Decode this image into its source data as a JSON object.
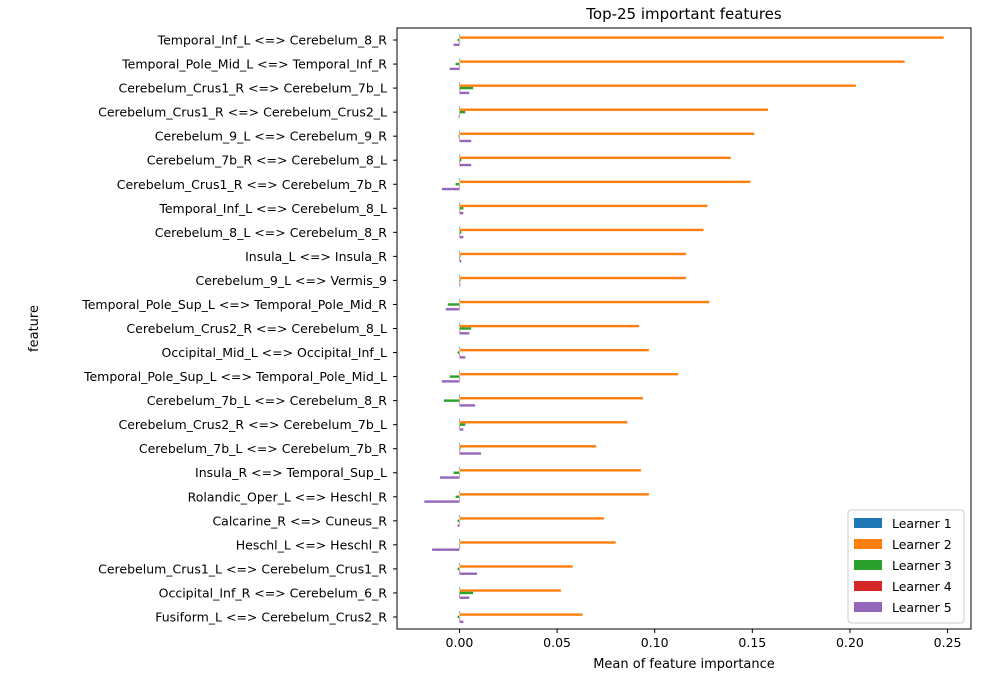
{
  "chart_data": {
    "type": "bar",
    "orientation": "horizontal",
    "title": "Top-25 important features",
    "xlabel": "Mean of feature importance",
    "ylabel": "feature",
    "xlim": [
      -0.032,
      0.262
    ],
    "xticks": [
      0.0,
      0.05,
      0.1,
      0.15,
      0.2,
      0.25
    ],
    "xtick_labels": [
      "0.00",
      "0.05",
      "0.10",
      "0.15",
      "0.20",
      "0.25"
    ],
    "legend_position": "lower-right",
    "categories": [
      "Temporal_Inf_L <=> Cerebelum_8_R",
      "Temporal_Pole_Mid_L <=> Temporal_Inf_R",
      "Cerebelum_Crus1_R <=> Cerebelum_7b_L",
      "Cerebelum_Crus1_R <=> Cerebelum_Crus2_L",
      "Cerebelum_9_L <=> Cerebelum_9_R",
      "Cerebelum_7b_R <=> Cerebelum_8_L",
      "Cerebelum_Crus1_R <=> Cerebelum_7b_R",
      "Temporal_Inf_L <=> Cerebelum_8_L",
      "Cerebelum_8_L <=> Cerebelum_8_R",
      "Insula_L <=> Insula_R",
      "Cerebelum_9_L <=> Vermis_9",
      "Temporal_Pole_Sup_L <=> Temporal_Pole_Mid_R",
      "Cerebelum_Crus2_R <=> Cerebelum_8_L",
      "Occipital_Mid_L <=> Occipital_Inf_L",
      "Temporal_Pole_Sup_L <=> Temporal_Pole_Mid_L",
      "Cerebelum_7b_L <=> Cerebelum_8_R",
      "Cerebelum_Crus2_R <=> Cerebelum_7b_L",
      "Cerebelum_7b_L <=> Cerebelum_7b_R",
      "Insula_R <=> Temporal_Sup_L",
      "Rolandic_Oper_L <=> Heschl_R",
      "Calcarine_R <=> Cuneus_R",
      "Heschl_L <=> Heschl_R",
      "Cerebelum_Crus1_L <=> Cerebelum_Crus1_R",
      "Occipital_Inf_R <=> Cerebelum_6_R",
      "Fusiform_L <=> Cerebelum_Crus2_R"
    ],
    "series": [
      {
        "name": "Learner 1",
        "color": "#1f77b4",
        "values": [
          0.0,
          0.0,
          0.0,
          0.0,
          0.0,
          0.0,
          0.0,
          0.0,
          0.0,
          0.0,
          0.0,
          0.0,
          0.0,
          0.0,
          0.0,
          0.0,
          0.0,
          0.0,
          0.0,
          0.0,
          0.0,
          0.0,
          0.0,
          0.0,
          0.0
        ]
      },
      {
        "name": "Learner 2",
        "color": "#ff7f0e",
        "values": [
          0.248,
          0.228,
          0.203,
          0.158,
          0.151,
          0.139,
          0.149,
          0.127,
          0.125,
          0.116,
          0.116,
          0.128,
          0.092,
          0.097,
          0.112,
          0.094,
          0.086,
          0.07,
          0.093,
          0.097,
          0.074,
          0.08,
          0.058,
          0.052,
          0.063
        ]
      },
      {
        "name": "Learner 3",
        "color": "#2ca02c",
        "values": [
          -0.001,
          -0.002,
          0.007,
          0.003,
          -0.0005,
          0.001,
          -0.002,
          0.002,
          0.001,
          0.0005,
          0.0005,
          -0.006,
          0.006,
          -0.001,
          -0.005,
          -0.008,
          0.003,
          0.0005,
          -0.003,
          -0.002,
          -0.001,
          0.0,
          -0.001,
          0.007,
          -0.001
        ]
      },
      {
        "name": "Learner 4",
        "color": "#d62728",
        "values": [
          0.0,
          0.0,
          0.0,
          0.0,
          0.0,
          0.0,
          0.0,
          0.0,
          0.0,
          0.0,
          0.0,
          0.0,
          0.0,
          0.0,
          0.0,
          0.0,
          0.0,
          0.0,
          0.0,
          0.0,
          0.0,
          0.0,
          0.0,
          0.0,
          0.0
        ]
      },
      {
        "name": "Learner 5",
        "color": "#9467bd",
        "values": [
          -0.003,
          -0.005,
          0.005,
          -0.0005,
          0.006,
          0.006,
          -0.009,
          0.002,
          0.002,
          0.001,
          0.0005,
          -0.007,
          0.005,
          0.003,
          -0.009,
          0.008,
          0.002,
          0.011,
          -0.01,
          -0.018,
          -0.001,
          -0.014,
          0.009,
          0.005,
          0.002
        ]
      }
    ]
  }
}
